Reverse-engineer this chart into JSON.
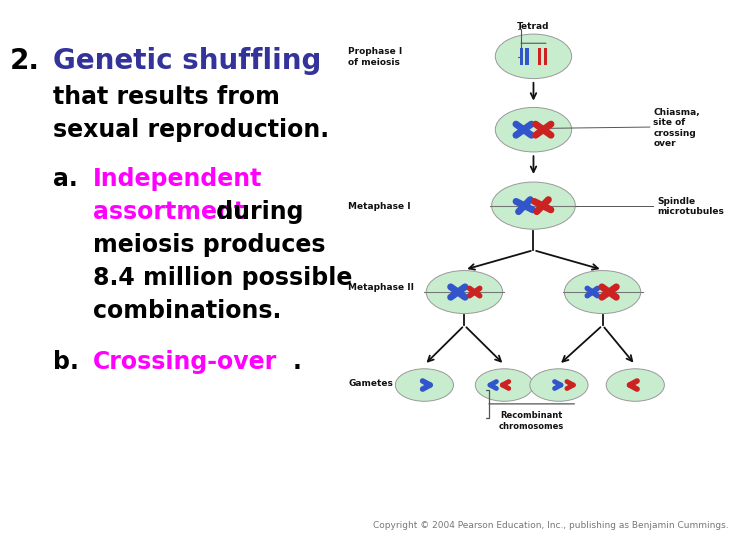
{
  "bg_color": "#ffffff",
  "number_text": "2.",
  "number_color": "#000000",
  "title_text": "Genetic shuffling",
  "title_color": "#333399",
  "subtitle_line1": "that results from",
  "subtitle_line2": "sexual reproduction.",
  "subtitle_color": "#000000",
  "item_a_label": "a.",
  "item_a_colored": "Independent",
  "item_a_colored2": "assortment",
  "item_a_colored_color": "#ff00ff",
  "item_a_suffix1": " during",
  "item_a_suffix2": "meiosis produces",
  "item_a_suffix3": "8.4 million possible",
  "item_a_suffix4": "combinations.",
  "item_a_suffix_color": "#000000",
  "item_b_label": "b.",
  "item_b_colored": "Crossing-over",
  "item_b_colored_color": "#ff00ff",
  "item_b_suffix": ".",
  "item_b_suffix_color": "#000000",
  "copyright": "Copyright © 2004 Pearson Education, Inc., publishing as Benjamin Cummings.",
  "copyright_color": "#777777",
  "font_size_number": 20,
  "font_size_title": 20,
  "font_size_body": 17,
  "font_size_copyright": 6.5,
  "lbl_fs": 6.5,
  "cell_color": "#c8edce",
  "cell_edge": "#999999",
  "chr_blue": "#3355cc",
  "chr_red": "#cc2222",
  "arrow_color": "#111111",
  "lbl_color": "#111111",
  "diagram_labels": {
    "tetrad": "Tetrad",
    "prophase": "Prophase I\nof meiosis",
    "chiasma": "Chiasma,\nsite of\ncrossing\nover",
    "metaphase1": "Metaphase I",
    "spindle": "Spindle\nmicrotubules",
    "metaphase2": "Metaphase II",
    "gametes": "Gametes",
    "recombinant": "Recombinant\nchromosomes"
  }
}
